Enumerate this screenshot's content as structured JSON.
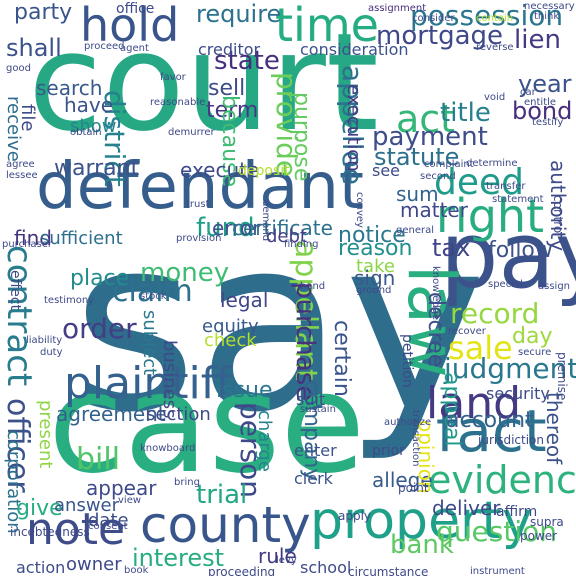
{
  "words": [
    {
      "text": "say",
      "color": "#2f6d8c",
      "vertical": false
    },
    {
      "text": "court",
      "color": "#26a884",
      "vertical": false
    },
    {
      "text": "case",
      "color": "#28ae80",
      "vertical": false
    },
    {
      "text": "defendant",
      "color": "#355e8d",
      "vertical": false
    },
    {
      "text": "pay",
      "color": "#3b528b",
      "vertical": false
    },
    {
      "text": "plaintiff",
      "color": "#34618d",
      "vertical": false
    },
    {
      "text": "county",
      "color": "#39568c",
      "vertical": false
    },
    {
      "text": "property",
      "color": "#1fa088",
      "vertical": false
    },
    {
      "text": "hold",
      "color": "#3a548c",
      "vertical": false
    },
    {
      "text": "time",
      "color": "#25ac82",
      "vertical": false
    },
    {
      "text": "fact",
      "color": "#2c718e",
      "vertical": false
    },
    {
      "text": "land",
      "color": "#443983",
      "vertical": false
    },
    {
      "text": "law",
      "color": "#29af7f",
      "vertical": true
    },
    {
      "text": "right",
      "color": "#27ad81",
      "vertical": false
    },
    {
      "text": "note",
      "color": "#3e4c8a",
      "vertical": false
    },
    {
      "text": "evidence",
      "color": "#2db27d",
      "vertical": false
    },
    {
      "text": "possession",
      "color": "#2a768e",
      "vertical": false
    },
    {
      "text": "mortgage",
      "color": "#3f4889",
      "vertical": false
    },
    {
      "text": "act",
      "color": "#34b679",
      "vertical": false
    },
    {
      "text": "deed",
      "color": "#1e9b8a",
      "vertical": false
    },
    {
      "text": "contract",
      "color": "#297b8e",
      "vertical": true
    },
    {
      "text": "sale",
      "color": "#e2e418",
      "vertical": false
    },
    {
      "text": "appellant",
      "color": "#81d34d",
      "vertical": true
    },
    {
      "text": "judgment",
      "color": "#2a788e",
      "vertical": false
    },
    {
      "text": "record",
      "color": "#95d840",
      "vertical": false
    },
    {
      "text": "claim",
      "color": "#2c728e",
      "vertical": false
    },
    {
      "text": "money",
      "color": "#3fbc73",
      "vertical": false
    },
    {
      "text": "fund",
      "color": "#1f9f88",
      "vertical": false
    },
    {
      "text": "order",
      "color": "#433e85",
      "vertical": false
    },
    {
      "text": "officer",
      "color": "#3b528b",
      "vertical": true
    },
    {
      "text": "title",
      "color": "#277f8e",
      "vertical": false
    },
    {
      "text": "payment",
      "color": "#3d4e8a",
      "vertical": false
    },
    {
      "text": "statute",
      "color": "#2d708e",
      "vertical": false
    },
    {
      "text": "bond",
      "color": "#472f7d",
      "vertical": false
    },
    {
      "text": "year",
      "color": "#3b528b",
      "vertical": false
    },
    {
      "text": "lien",
      "color": "#443a83",
      "vertical": false
    },
    {
      "text": "district",
      "color": "#26818e",
      "vertical": true
    },
    {
      "text": "appellee",
      "color": "#2c728e",
      "vertical": true
    },
    {
      "text": "provide",
      "color": "#6ccd5a",
      "vertical": true
    },
    {
      "text": "purchase",
      "color": "#46327e",
      "vertical": true
    },
    {
      "text": "question",
      "color": "#58c765",
      "vertical": false
    },
    {
      "text": "bank",
      "color": "#5ec962",
      "vertical": false
    },
    {
      "text": "interest",
      "color": "#27ad81",
      "vertical": false
    },
    {
      "text": "person",
      "color": "#3e4989",
      "vertical": true
    },
    {
      "text": "bill",
      "color": "#52c569",
      "vertical": false
    },
    {
      "text": "trial",
      "color": "#22a785",
      "vertical": false
    },
    {
      "text": "company",
      "color": "#32658e",
      "vertical": true
    },
    {
      "text": "appeal",
      "color": "#1f988b",
      "vertical": true
    },
    {
      "text": "account",
      "color": "#33638d",
      "vertical": false
    },
    {
      "text": "issue",
      "color": "#2a768e",
      "vertical": false
    },
    {
      "text": "tax",
      "color": "#404588",
      "vertical": false
    },
    {
      "text": "party",
      "color": "#3a548c",
      "vertical": false
    },
    {
      "text": "state",
      "color": "#46307e",
      "vertical": false
    },
    {
      "text": "require",
      "color": "#2d718e",
      "vertical": false
    },
    {
      "text": "shall",
      "color": "#3b528b",
      "vertical": false
    },
    {
      "text": "purpose",
      "color": "#63cb5f",
      "vertical": true
    },
    {
      "text": "term",
      "color": "#443983",
      "vertical": false
    },
    {
      "text": "sell",
      "color": "#3e4c8a",
      "vertical": false
    },
    {
      "text": "search",
      "color": "#38598c",
      "vertical": false
    },
    {
      "text": "have",
      "color": "#3b528b",
      "vertical": false
    },
    {
      "text": "show",
      "color": "#24868e",
      "vertical": false
    },
    {
      "text": "because",
      "color": "#3fbc73",
      "vertical": true
    },
    {
      "text": "warrant",
      "color": "#3b528b",
      "vertical": false
    },
    {
      "text": "execute",
      "color": "#3e4a89",
      "vertical": false
    },
    {
      "text": "error",
      "color": "#3d4e8a",
      "vertical": false
    },
    {
      "text": "certificate",
      "color": "#2c718e",
      "vertical": false
    },
    {
      "text": "debt",
      "color": "#433e85",
      "vertical": false
    },
    {
      "text": "notice",
      "color": "#2a788e",
      "vertical": false
    },
    {
      "text": "reason",
      "color": "#21908d",
      "vertical": false
    },
    {
      "text": "sum",
      "color": "#32648e",
      "vertical": false
    },
    {
      "text": "matter",
      "color": "#3f4889",
      "vertical": false
    },
    {
      "text": "find",
      "color": "#46327e",
      "vertical": false
    },
    {
      "text": "sufficient",
      "color": "#2e6e8e",
      "vertical": false
    },
    {
      "text": "follow",
      "color": "#3b528b",
      "vertical": false
    },
    {
      "text": "take",
      "color": "#8bd646",
      "vertical": false
    },
    {
      "text": "sign",
      "color": "#38598c",
      "vertical": false
    },
    {
      "text": "place",
      "color": "#228c8d",
      "vertical": false
    },
    {
      "text": "legal",
      "color": "#3f4788",
      "vertical": false
    },
    {
      "text": "equity",
      "color": "#375a8c",
      "vertical": false
    },
    {
      "text": "check",
      "color": "#b5de2b",
      "vertical": false
    },
    {
      "text": "business",
      "color": "#3e4989",
      "vertical": true
    },
    {
      "text": "subject",
      "color": "#2a788e",
      "vertical": true
    },
    {
      "text": "decree",
      "color": "#3d4e8a",
      "vertical": true
    },
    {
      "text": "certain",
      "color": "#3a538b",
      "vertical": true
    },
    {
      "text": "agreement",
      "color": "#33638d",
      "vertical": false
    },
    {
      "text": "section",
      "color": "#3e4a89",
      "vertical": false
    },
    {
      "text": "day",
      "color": "#9dd93b",
      "vertical": false
    },
    {
      "text": "corporation",
      "color": "#2c728e",
      "vertical": true
    },
    {
      "text": "present",
      "color": "#8ed645",
      "vertical": true
    },
    {
      "text": "give",
      "color": "#27ad81",
      "vertical": false
    },
    {
      "text": "answer",
      "color": "#3a548c",
      "vertical": false
    },
    {
      "text": "appear",
      "color": "#3e4a89",
      "vertical": false
    },
    {
      "text": "date",
      "color": "#3d4d8a",
      "vertical": false
    },
    {
      "text": "charge",
      "color": "#25848e",
      "vertical": true
    },
    {
      "text": "allege",
      "color": "#38598c",
      "vertical": false
    },
    {
      "text": "enter",
      "color": "#3b528b",
      "vertical": false
    },
    {
      "text": "clerk",
      "color": "#3b528b",
      "vertical": false
    },
    {
      "text": "deliver",
      "color": "#3e4a89",
      "vertical": false
    },
    {
      "text": "rule",
      "color": "#443a83",
      "vertical": false
    },
    {
      "text": "school",
      "color": "#3e4a89",
      "vertical": false
    },
    {
      "text": "owner",
      "color": "#3e4989",
      "vertical": false
    },
    {
      "text": "action",
      "color": "#3e4c8a",
      "vertical": false
    },
    {
      "text": "security",
      "color": "#3d4d8a",
      "vertical": false
    },
    {
      "text": "suit",
      "color": "#3e4a89",
      "vertical": false
    },
    {
      "text": "opinion",
      "color": "#e5e419",
      "vertical": true
    },
    {
      "text": "thereof",
      "color": "#3b528b",
      "vertical": true
    },
    {
      "text": "authority",
      "color": "#3e4a89",
      "vertical": true
    },
    {
      "text": "receive",
      "color": "#2f6c8e",
      "vertical": true
    },
    {
      "text": "file",
      "color": "#3e4a89",
      "vertical": true
    },
    {
      "text": "execution",
      "color": "#443983",
      "vertical": true
    },
    {
      "text": "consideration",
      "color": "#3b528b",
      "vertical": false
    },
    {
      "text": "creditor",
      "color": "#3e4c8a",
      "vertical": false
    },
    {
      "text": "see",
      "color": "#3e4a89",
      "vertical": false
    },
    {
      "text": "effect",
      "color": "#3e4c8a",
      "vertical": true
    },
    {
      "text": "petition",
      "color": "#3e4a89",
      "vertical": true
    },
    {
      "text": "deposit",
      "color": "#b5de2b",
      "vertical": false
    },
    {
      "text": "office",
      "color": "#3e4a89",
      "vertical": false
    },
    {
      "text": "proceed",
      "color": "#3e4a89",
      "vertical": false
    },
    {
      "text": "agent",
      "color": "#3e4a89",
      "vertical": false
    },
    {
      "text": "favor",
      "color": "#3e4a89",
      "vertical": false
    },
    {
      "text": "assignment",
      "color": "#46307e",
      "vertical": false
    },
    {
      "text": "necessary",
      "color": "#3e4a89",
      "vertical": false
    },
    {
      "text": "think",
      "color": "#3e4a89",
      "vertical": false
    },
    {
      "text": "contain",
      "color": "#b5de2b",
      "vertical": false
    },
    {
      "text": "reverse",
      "color": "#3e4a89",
      "vertical": false
    },
    {
      "text": "car",
      "color": "#3e4a89",
      "vertical": false
    },
    {
      "text": "entitle",
      "color": "#3e4a89",
      "vertical": false
    },
    {
      "text": "testify",
      "color": "#3e4a89",
      "vertical": false
    },
    {
      "text": "void",
      "color": "#3e4a89",
      "vertical": false
    },
    {
      "text": "good",
      "color": "#3e4a89",
      "vertical": false
    },
    {
      "text": "obtain",
      "color": "#3e4a89",
      "vertical": false
    },
    {
      "text": "reasonable",
      "color": "#3e4a89",
      "vertical": false
    },
    {
      "text": "demurrer",
      "color": "#3e4a89",
      "vertical": false
    },
    {
      "text": "agree",
      "color": "#3e4a89",
      "vertical": false
    },
    {
      "text": "lessee",
      "color": "#3e4a89",
      "vertical": false
    },
    {
      "text": "second",
      "color": "#3e4a89",
      "vertical": false
    },
    {
      "text": "complaint",
      "color": "#3e4a89",
      "vertical": false
    },
    {
      "text": "determine",
      "color": "#3e4a89",
      "vertical": false
    },
    {
      "text": "transfer",
      "color": "#3e4a89",
      "vertical": false
    },
    {
      "text": "statement",
      "color": "#3e4a89",
      "vertical": false
    },
    {
      "text": "control",
      "color": "#3e4a89",
      "vertical": true
    },
    {
      "text": "purchaser",
      "color": "#3e4a89",
      "vertical": false
    },
    {
      "text": "provision",
      "color": "#3e4a89",
      "vertical": false
    },
    {
      "text": "finding",
      "color": "#3e4a89",
      "vertical": false
    },
    {
      "text": "general",
      "color": "#3e4a89",
      "vertical": false
    },
    {
      "text": "special",
      "color": "#3e4a89",
      "vertical": false
    },
    {
      "text": "sustain",
      "color": "#3e4a89",
      "vertical": false
    },
    {
      "text": "prior",
      "color": "#3e4a89",
      "vertical": false
    },
    {
      "text": "point",
      "color": "#3e4a89",
      "vertical": false
    },
    {
      "text": "jurisdiction",
      "color": "#3e4a89",
      "vertical": false
    },
    {
      "text": "supra",
      "color": "#3e4a89",
      "vertical": false
    },
    {
      "text": "power",
      "color": "#3e4a89",
      "vertical": false
    },
    {
      "text": "affirm",
      "color": "#3e4a89",
      "vertical": false
    },
    {
      "text": "consent",
      "color": "#3e4a89",
      "vertical": false
    },
    {
      "text": "knowboard",
      "color": "#3e4a89",
      "vertical": false
    },
    {
      "text": "incebtedness",
      "color": "#3e4a89",
      "vertical": false
    },
    {
      "text": "apply",
      "color": "#3e4a89",
      "vertical": false
    },
    {
      "text": "instrument",
      "color": "#3e4a89",
      "vertical": false
    },
    {
      "text": "proceeding",
      "color": "#3e4a89",
      "vertical": false
    },
    {
      "text": "book",
      "color": "#3e4a89",
      "vertical": false
    },
    {
      "text": "hand",
      "color": "#3e4a89",
      "vertical": false
    },
    {
      "text": "stock",
      "color": "#3e4a89",
      "vertical": false
    },
    {
      "text": "testimony",
      "color": "#3e4a89",
      "vertical": false
    },
    {
      "text": "liability",
      "color": "#3e4a89",
      "vertical": false
    },
    {
      "text": "duty",
      "color": "#3e4a89",
      "vertical": false
    },
    {
      "text": "recover",
      "color": "#3e4a89",
      "vertical": false
    },
    {
      "text": "secure",
      "color": "#3e4a89",
      "vertical": false
    },
    {
      "text": "premise",
      "color": "#3e4a89",
      "vertical": true
    },
    {
      "text": "assign",
      "color": "#3e4a89",
      "vertical": false
    },
    {
      "text": "knowledge",
      "color": "#3e4a89",
      "vertical": true
    },
    {
      "text": "transaction",
      "color": "#3e4a89",
      "vertical": true
    },
    {
      "text": "authorize",
      "color": "#3e4a89",
      "vertical": false
    },
    {
      "text": "ground",
      "color": "#3e4a89",
      "vertical": false
    },
    {
      "text": "demand",
      "color": "#3e4a89",
      "vertical": true
    },
    {
      "text": "convey",
      "color": "#3e4a89",
      "vertical": true
    },
    {
      "text": "trust",
      "color": "#3e4a89",
      "vertical": false
    },
    {
      "text": "levy",
      "color": "#3e4a89",
      "vertical": false
    },
    {
      "text": "circumstance",
      "color": "#3e4a89",
      "vertical": false
    },
    {
      "text": "bring",
      "color": "#3e4a89",
      "vertical": false
    },
    {
      "text": "view",
      "color": "#3e4a89",
      "vertical": false
    },
    {
      "text": "consider",
      "color": "#3e4a89",
      "vertical": false
    }
  ]
}
